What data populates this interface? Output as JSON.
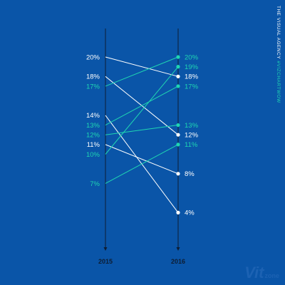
{
  "credit": {
    "agency": "THE VISUAL AGENCY",
    "hashtag": "#VIZCHARTWOW"
  },
  "watermark": {
    "main": "Vit",
    "sub": "zone"
  },
  "colors": {
    "background": "#0a55a8",
    "axis": "#0d1d33",
    "down": "#ffffff",
    "up": "#1fd6b2"
  },
  "chart_data": {
    "type": "slope",
    "x": [
      "2015",
      "2016"
    ],
    "ylim": [
      0,
      25
    ],
    "series": [
      {
        "values": [
          20,
          18
        ],
        "direction": "down"
      },
      {
        "values": [
          18,
          12
        ],
        "direction": "down"
      },
      {
        "values": [
          14,
          4
        ],
        "direction": "down"
      },
      {
        "values": [
          11,
          8
        ],
        "direction": "down"
      },
      {
        "values": [
          17,
          20
        ],
        "direction": "up"
      },
      {
        "values": [
          13,
          17
        ],
        "direction": "up"
      },
      {
        "values": [
          12,
          13
        ],
        "direction": "up"
      },
      {
        "values": [
          10,
          19
        ],
        "direction": "up"
      },
      {
        "values": [
          7,
          11
        ],
        "direction": "up"
      }
    ]
  }
}
